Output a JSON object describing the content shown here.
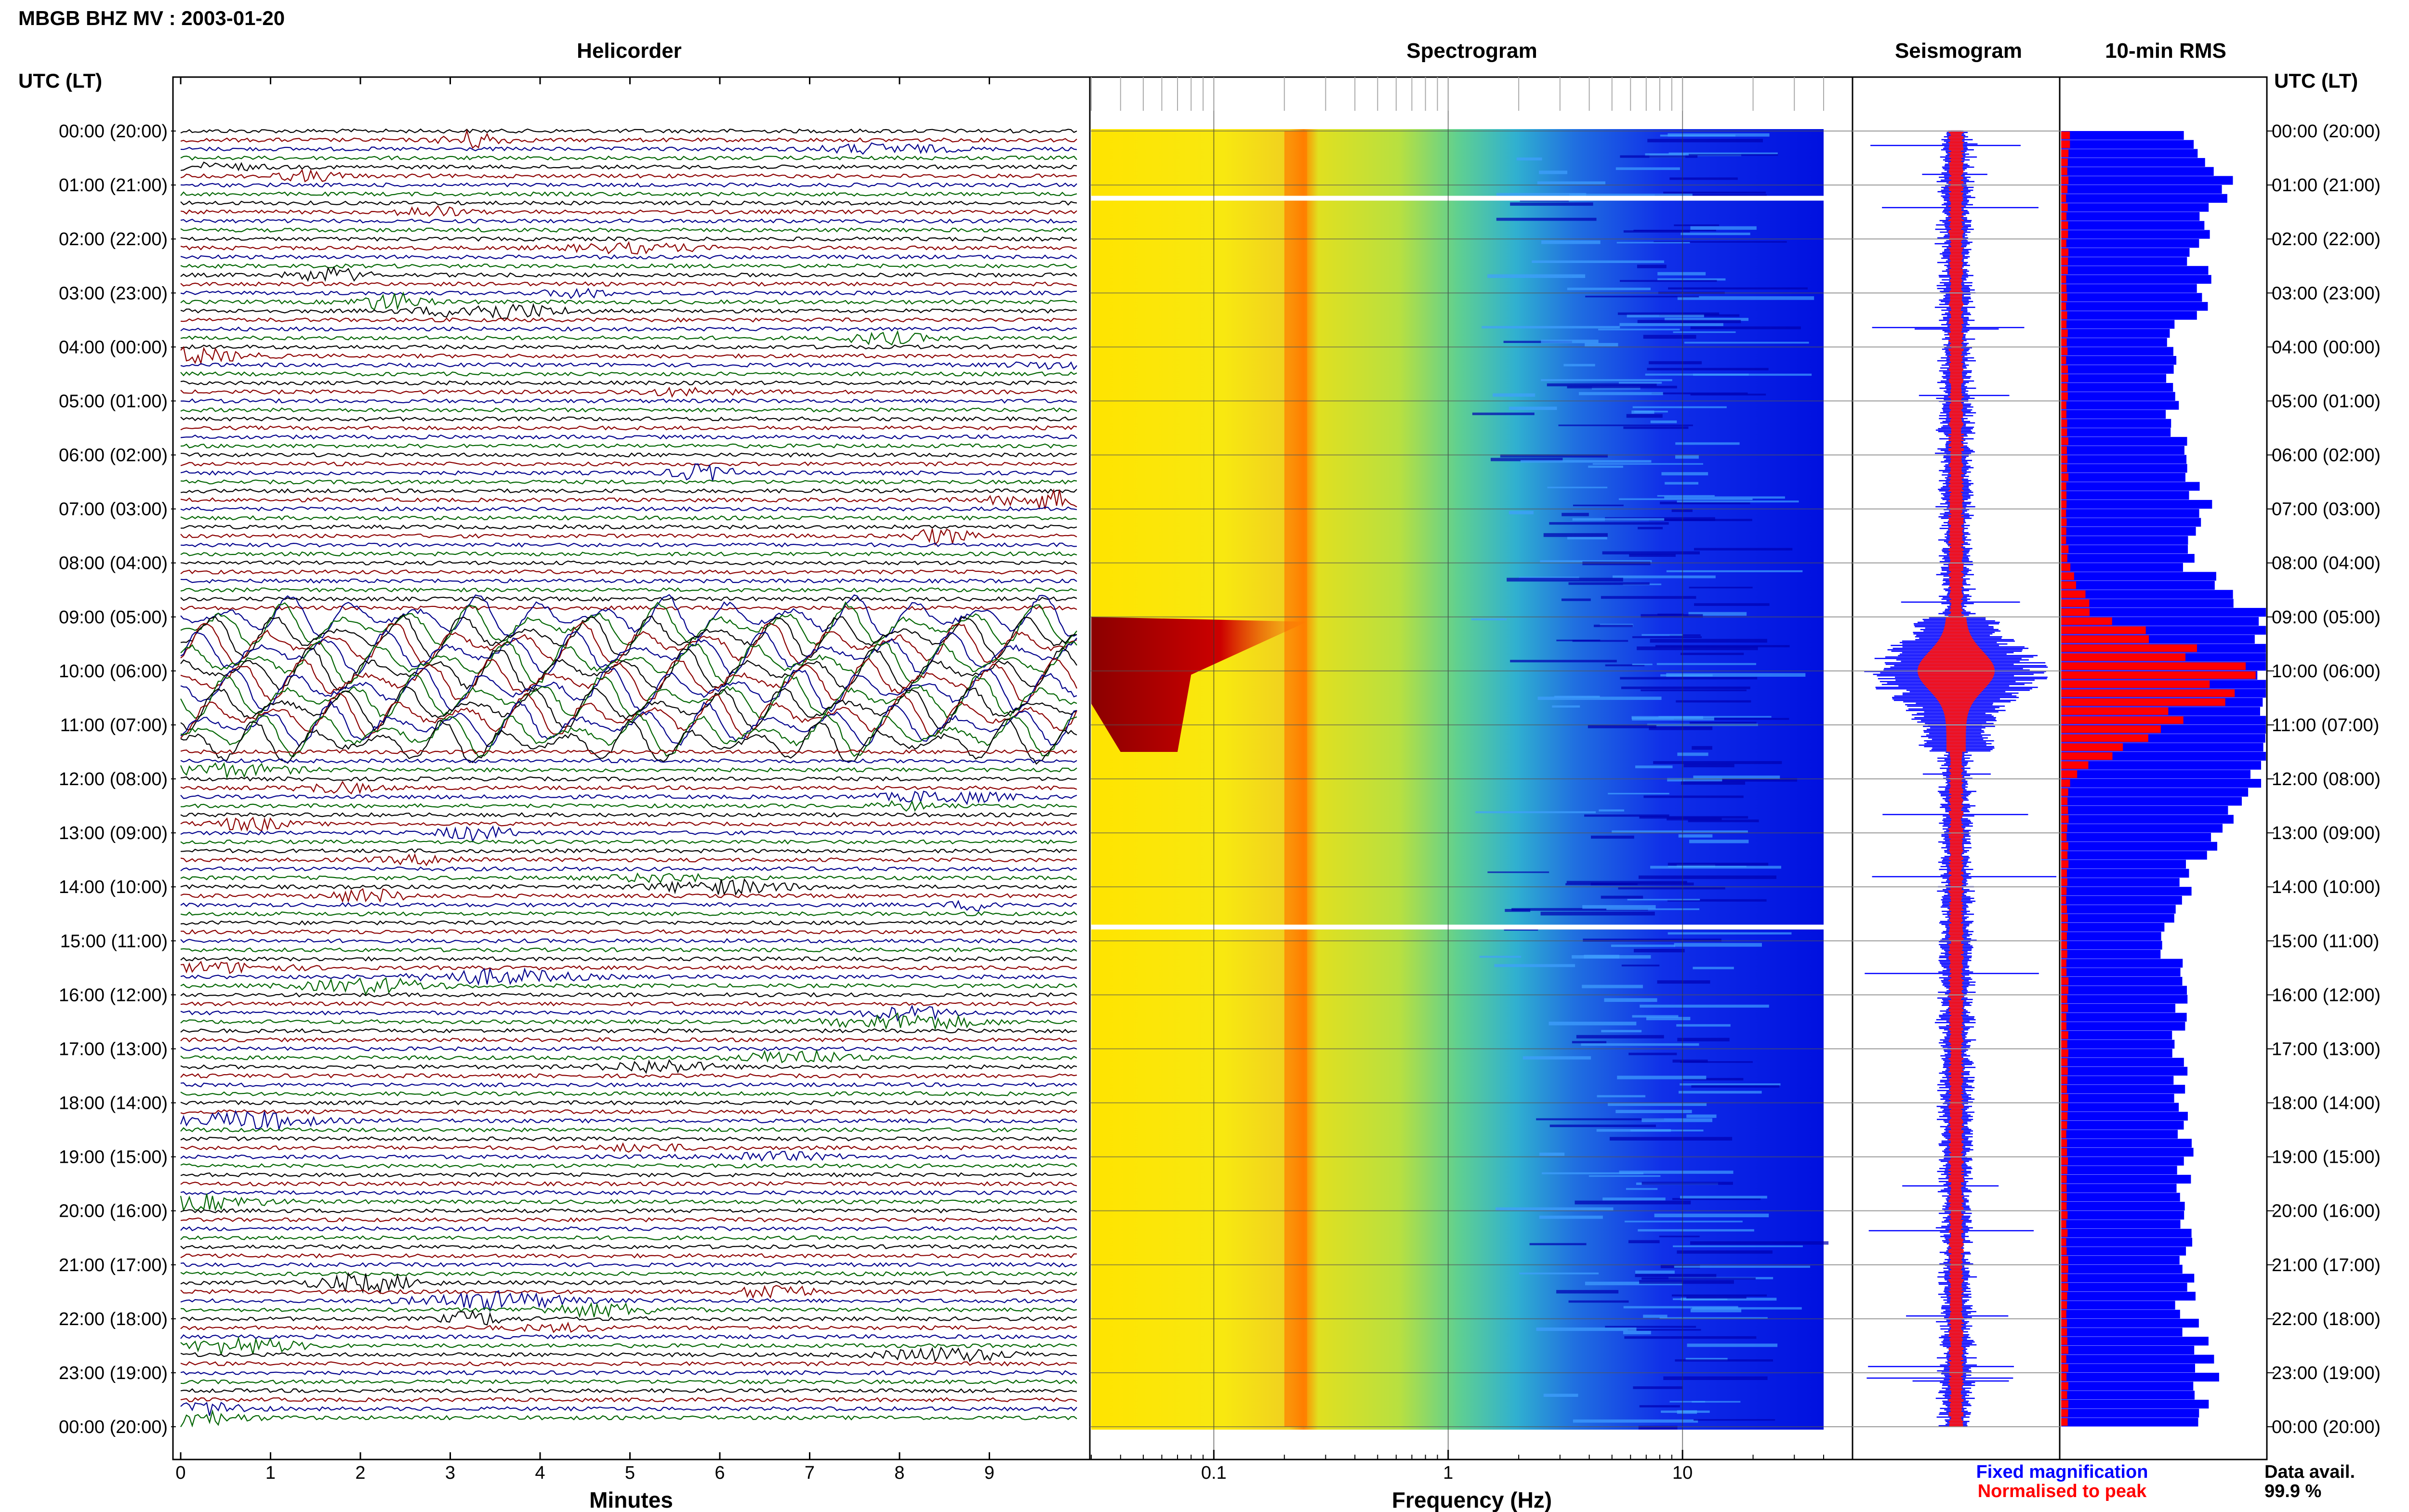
{
  "header": {
    "title": "MBGB BHZ MV : 2003-01-20",
    "utc_label_left": "UTC (LT)",
    "utc_label_right": "UTC (LT)"
  },
  "colors": {
    "trace_black": "#000000",
    "trace_red": "#8b0000",
    "trace_blue": "#00008b",
    "trace_green": "#006400",
    "fixed_blue": "#0000ff",
    "normalised_red": "#ff0000"
  },
  "legend": {
    "fixed_magnification": "Fixed magnification",
    "normalised_to_peak": "Normalised to peak",
    "data_avail_label": "Data avail.",
    "data_avail_value": "99.9 %"
  },
  "chart_data": [
    {
      "type": "line",
      "name": "helicorder",
      "title": "Helicorder",
      "xlabel": "Minutes",
      "x_ticks": [
        "0",
        "1",
        "2",
        "3",
        "4",
        "5",
        "6",
        "7",
        "8",
        "9"
      ],
      "xlim": [
        0,
        10
      ],
      "rows_per_hour": 6,
      "row_colors": [
        "black",
        "red",
        "blue",
        "green"
      ],
      "time_labels": [
        "00:00 (20:00)",
        "01:00 (21:00)",
        "02:00 (22:00)",
        "03:00 (23:00)",
        "04:00 (00:00)",
        "05:00 (01:00)",
        "06:00 (02:00)",
        "07:00 (03:00)",
        "08:00 (04:00)",
        "09:00 (05:00)",
        "10:00 (06:00)",
        "11:00 (07:00)",
        "12:00 (08:00)",
        "13:00 (09:00)",
        "14:00 (10:00)",
        "15:00 (11:00)",
        "16:00 (12:00)",
        "17:00 (13:00)",
        "18:00 (14:00)",
        "19:00 (15:00)",
        "20:00 (16:00)",
        "21:00 (17:00)",
        "22:00 (18:00)",
        "23:00 (19:00)",
        "00:00 (20:00)"
      ],
      "high_amplitude_hours": [
        9.0,
        11.5
      ]
    },
    {
      "type": "heatmap",
      "name": "spectrogram",
      "title": "Spectrogram",
      "xlabel": "Frequency (Hz)",
      "x_scale": "log",
      "xlim": [
        0.03,
        40
      ],
      "x_ticks": [
        "0.1",
        "1",
        "10"
      ],
      "peak_band_hz": [
        0.2,
        0.25
      ],
      "low_freq_burst_hours": [
        9.0,
        11.5
      ],
      "gaps_hours": [
        1.2,
        14.7
      ]
    },
    {
      "type": "line",
      "name": "seismogram",
      "title": "Seismogram",
      "series": [
        {
          "name": "Fixed magnification",
          "color": "#0000ff"
        },
        {
          "name": "Normalised to peak",
          "color": "#ff0000"
        }
      ]
    },
    {
      "type": "bar",
      "name": "rms",
      "title": "10-min RMS",
      "orientation": "horizontal",
      "blue_hourly_profile": [
        0.55,
        0.85,
        0.65,
        0.7,
        0.55,
        0.55,
        0.6,
        0.7,
        0.6,
        1.0,
        1.0,
        1.0,
        0.95,
        0.75,
        0.6,
        0.5,
        0.6,
        0.6,
        0.55,
        0.6,
        0.6,
        0.6,
        0.62,
        0.72,
        0.65
      ],
      "red_hourly_profile": [
        0.04,
        0.03,
        0.03,
        0.03,
        0.03,
        0.03,
        0.03,
        0.03,
        0.03,
        0.15,
        0.95,
        0.5,
        0.04,
        0.03,
        0.03,
        0.03,
        0.03,
        0.03,
        0.03,
        0.03,
        0.03,
        0.03,
        0.03,
        0.03,
        0.03
      ]
    }
  ]
}
